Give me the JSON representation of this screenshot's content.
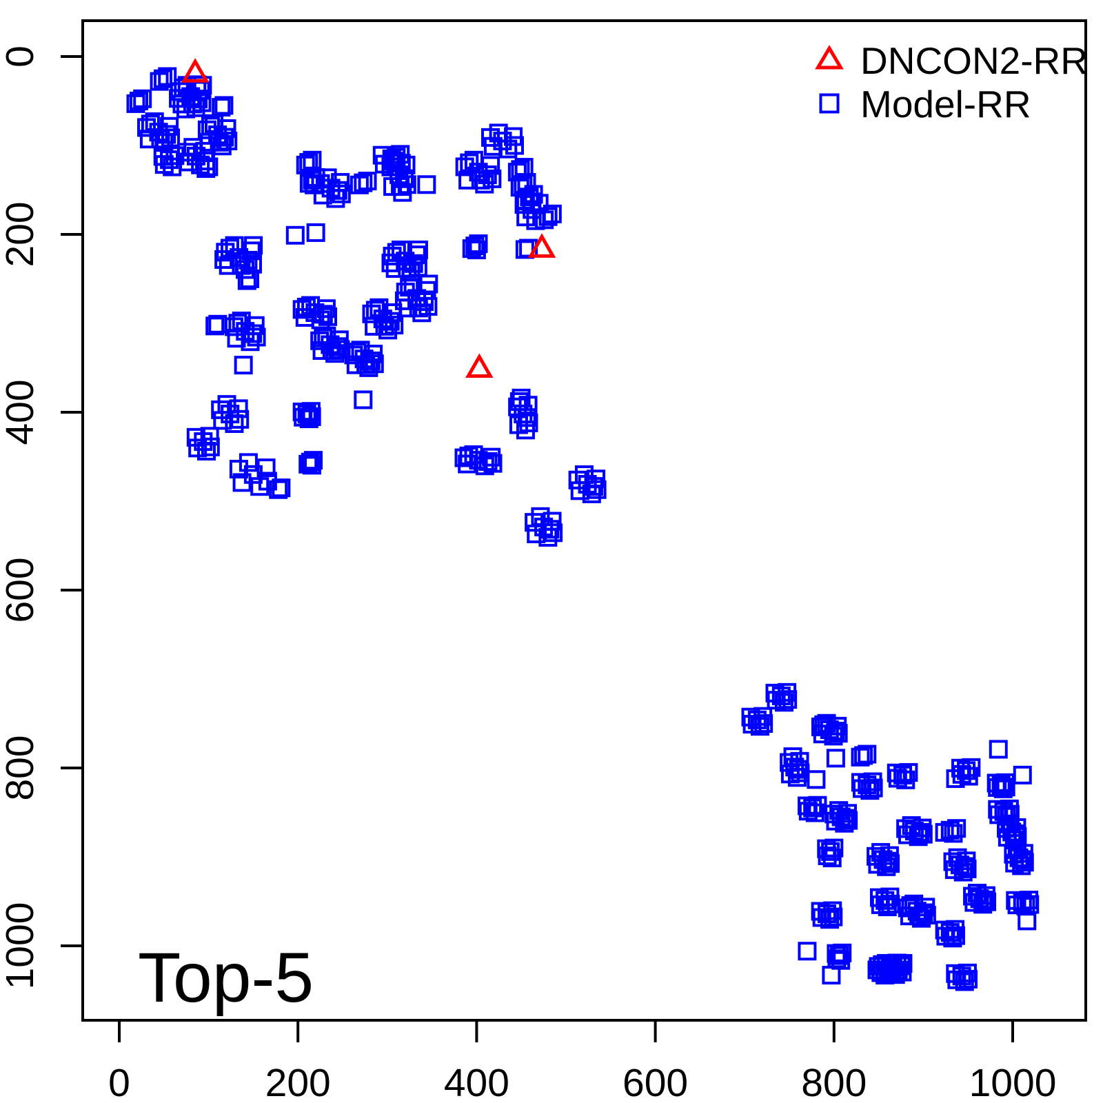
{
  "figure": {
    "background": "#ffffff",
    "axis_color": "#000000"
  },
  "chart_data": {
    "type": "scatter",
    "annotation": {
      "text": "Top-5"
    },
    "axes": {
      "x_ticks": [
        0,
        200,
        400,
        600,
        800,
        1000
      ],
      "y_ticks": [
        0,
        200,
        400,
        600,
        800,
        1000
      ],
      "x_range": [
        -41,
        1082
      ],
      "y_range": [
        -40,
        1084
      ],
      "y_axis_inverted": true,
      "grid": false
    },
    "legend": {
      "position": "top-right",
      "entries": [
        {
          "label": "DNCON2-RR",
          "marker": "triangle-open",
          "color": "#ff0000"
        },
        {
          "label": "Model-RR",
          "marker": "square-open",
          "color": "#0000ff"
        }
      ]
    },
    "cluster_format": "[x_center, y_center, n_points, x_spread, y_spread]",
    "series": [
      {
        "name": "DNCON2-RR",
        "marker": "triangle-open",
        "color": "#ff0000",
        "points": [
          [
            85,
            18
          ],
          [
            473,
            215
          ],
          [
            403,
            350
          ]
        ]
      },
      {
        "name": "Model-RR",
        "marker": "square-open",
        "color": "#0000ff",
        "clusters": [
          [
            49,
            25,
            3,
            6,
            5
          ],
          [
            80,
            45,
            14,
            14,
            14
          ],
          [
            114,
            57,
            2,
            4,
            4
          ],
          [
            22,
            50,
            3,
            5,
            5
          ],
          [
            44,
            85,
            10,
            15,
            13
          ],
          [
            110,
            88,
            10,
            13,
            14
          ],
          [
            56,
            116,
            5,
            8,
            9
          ],
          [
            86,
            112,
            7,
            12,
            11
          ],
          [
            97,
            126,
            2,
            4,
            4
          ],
          [
            212,
            119,
            3,
            5,
            5
          ],
          [
            216,
            139,
            4,
            5,
            6
          ],
          [
            237,
            148,
            8,
            13,
            13
          ],
          [
            273,
            142,
            3,
            6,
            4
          ],
          [
            305,
            115,
            6,
            12,
            10
          ],
          [
            313,
            133,
            10,
            10,
            22
          ],
          [
            344,
            144,
            1,
            0,
            0
          ],
          [
            197,
            201,
            1,
            0,
            0
          ],
          [
            220,
            198,
            1,
            0,
            0
          ],
          [
            402,
            130,
            10,
            17,
            15
          ],
          [
            429,
            95,
            7,
            15,
            10
          ],
          [
            449,
            127,
            3,
            5,
            5
          ],
          [
            452,
            144,
            3,
            5,
            5
          ],
          [
            459,
            158,
            4,
            6,
            6
          ],
          [
            462,
            172,
            5,
            10,
            14
          ],
          [
            480,
            180,
            3,
            6,
            6
          ],
          [
            320,
            230,
            12,
            16,
            14
          ],
          [
            333,
            272,
            12,
            14,
            18
          ],
          [
            134,
            226,
            12,
            17,
            15
          ],
          [
            143,
            252,
            2,
            4,
            4
          ],
          [
            219,
            288,
            9,
            16,
            9
          ],
          [
            295,
            295,
            10,
            14,
            14
          ],
          [
            236,
            324,
            10,
            13,
            11
          ],
          [
            274,
            340,
            10,
            13,
            11
          ],
          [
            107,
            303,
            2,
            4,
            4
          ],
          [
            141,
            309,
            9,
            14,
            13
          ],
          [
            139,
            347,
            1,
            0,
            0
          ],
          [
            273,
            386,
            1,
            0,
            0
          ],
          [
            124,
            402,
            7,
            12,
            12
          ],
          [
            210,
            402,
            6,
            6,
            6
          ],
          [
            94,
            433,
            6,
            9,
            12
          ],
          [
            150,
            470,
            7,
            18,
            15
          ],
          [
            214,
            456,
            4,
            4,
            4
          ],
          [
            178,
            487,
            2,
            4,
            4
          ],
          [
            452,
            402,
            9,
            7,
            20
          ],
          [
            402,
            454,
            9,
            18,
            7
          ],
          [
            524,
            481,
            8,
            12,
            12
          ],
          [
            475,
            529,
            8,
            12,
            13
          ],
          [
            454,
            217,
            2,
            5,
            3
          ],
          [
            398,
            213,
            4,
            5,
            5
          ],
          [
            741,
            719,
            6,
            8,
            8
          ],
          [
            714,
            746,
            6,
            8,
            8
          ],
          [
            795,
            757,
            9,
            11,
            8
          ],
          [
            756,
            799,
            8,
            7,
            13
          ],
          [
            802,
            789,
            1,
            0,
            0
          ],
          [
            833,
            786,
            3,
            5,
            3
          ],
          [
            780,
            813,
            1,
            0,
            0
          ],
          [
            837,
            819,
            6,
            8,
            7
          ],
          [
            877,
            808,
            5,
            8,
            6
          ],
          [
            984,
            779,
            1,
            0,
            0
          ],
          [
            948,
            803,
            5,
            7,
            7
          ],
          [
            987,
            819,
            6,
            6,
            5
          ],
          [
            1011,
            808,
            1,
            0,
            0
          ],
          [
            936,
            812,
            1,
            0,
            0
          ],
          [
            776,
            845,
            5,
            7,
            6
          ],
          [
            808,
            855,
            8,
            9,
            8
          ],
          [
            796,
            894,
            5,
            5,
            8
          ],
          [
            855,
            903,
            8,
            9,
            9
          ],
          [
            890,
            871,
            8,
            11,
            7
          ],
          [
            930,
            870,
            4,
            9,
            4
          ],
          [
            941,
            909,
            8,
            9,
            9
          ],
          [
            990,
            849,
            6,
            8,
            6
          ],
          [
            999,
            872,
            8,
            7,
            10
          ],
          [
            1007,
            901,
            8,
            7,
            10
          ],
          [
            963,
            947,
            8,
            9,
            7
          ],
          [
            1011,
            951,
            6,
            9,
            5
          ],
          [
            1016,
            972,
            1,
            0,
            0
          ],
          [
            857,
            949,
            6,
            7,
            8
          ],
          [
            893,
            961,
            10,
            12,
            9
          ],
          [
            792,
            964,
            6,
            8,
            7
          ],
          [
            770,
            1006,
            1,
            0,
            0
          ],
          [
            806,
            1011,
            5,
            4,
            6
          ],
          [
            797,
            1033,
            1,
            0,
            0
          ],
          [
            863,
            1026,
            16,
            15,
            7
          ],
          [
            930,
            985,
            6,
            7,
            7
          ],
          [
            943,
            1034,
            6,
            8,
            7
          ]
        ]
      }
    ]
  }
}
